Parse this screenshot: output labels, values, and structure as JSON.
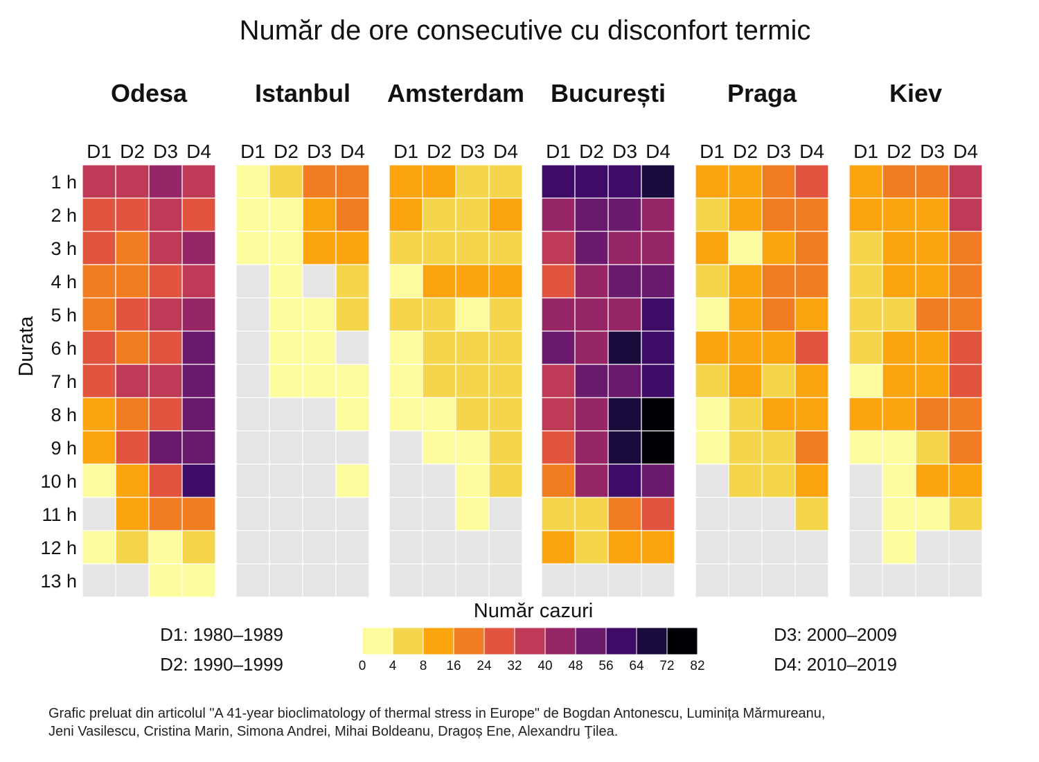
{
  "chart_data": {
    "type": "heatmap",
    "title": "Număr de ore consecutive cu disconfort termic",
    "ylabel": "Durata",
    "column_labels": [
      "D1",
      "D2",
      "D3",
      "D4"
    ],
    "row_labels": [
      "1 h",
      "2 h",
      "3 h",
      "4 h",
      "5 h",
      "6 h",
      "7 h",
      "8 h",
      "9 h",
      "10 h",
      "11 h",
      "12 h",
      "13 h"
    ],
    "legend": {
      "title": "Număr cazuri",
      "bins": [
        0,
        4,
        8,
        16,
        24,
        32,
        40,
        48,
        56,
        64,
        72,
        82
      ],
      "colors": [
        "#fcfc9f",
        "#f5d54b",
        "#fba40e",
        "#f27c22",
        "#e05440",
        "#bf3a56",
        "#962665",
        "#6a1a6d",
        "#3e0c66",
        "#190b3c",
        "#000004"
      ],
      "missing_color": "#e5e5e5"
    },
    "periods": [
      {
        "key": "D1",
        "label": "D1: 1980–1989"
      },
      {
        "key": "D2",
        "label": "D2: 1990–1999"
      },
      {
        "key": "D3",
        "label": "D3: 2000–2009"
      },
      {
        "key": "D4",
        "label": "D4: 2010–2019"
      }
    ],
    "panels": [
      {
        "city": "Odesa",
        "bins": [
          [
            5,
            5,
            6,
            5
          ],
          [
            4,
            4,
            5,
            4
          ],
          [
            4,
            3,
            5,
            6
          ],
          [
            3,
            3,
            4,
            5
          ],
          [
            3,
            4,
            5,
            6
          ],
          [
            4,
            3,
            4,
            7
          ],
          [
            4,
            5,
            5,
            7
          ],
          [
            2,
            3,
            4,
            7
          ],
          [
            2,
            4,
            7,
            7
          ],
          [
            0,
            2,
            4,
            8
          ],
          [
            null,
            2,
            3,
            3
          ],
          [
            0,
            1,
            0,
            1
          ],
          [
            null,
            null,
            0,
            0
          ]
        ]
      },
      {
        "city": "Istanbul",
        "bins": [
          [
            0,
            1,
            3,
            3
          ],
          [
            0,
            0,
            2,
            3
          ],
          [
            0,
            0,
            2,
            2
          ],
          [
            null,
            0,
            null,
            1
          ],
          [
            null,
            0,
            0,
            1
          ],
          [
            null,
            0,
            0,
            null
          ],
          [
            null,
            0,
            0,
            0
          ],
          [
            null,
            null,
            null,
            0
          ],
          [
            null,
            null,
            null,
            null
          ],
          [
            null,
            null,
            null,
            0
          ],
          [
            null,
            null,
            null,
            null
          ],
          [
            null,
            null,
            null,
            null
          ],
          [
            null,
            null,
            null,
            null
          ]
        ]
      },
      {
        "city": "Amsterdam",
        "bins": [
          [
            2,
            2,
            1,
            1
          ],
          [
            2,
            1,
            1,
            2
          ],
          [
            1,
            1,
            1,
            1
          ],
          [
            0,
            2,
            2,
            2
          ],
          [
            1,
            1,
            0,
            1
          ],
          [
            0,
            1,
            1,
            1
          ],
          [
            0,
            1,
            1,
            1
          ],
          [
            0,
            0,
            1,
            1
          ],
          [
            null,
            0,
            0,
            1
          ],
          [
            null,
            null,
            0,
            1
          ],
          [
            null,
            null,
            0,
            null
          ],
          [
            null,
            null,
            null,
            null
          ],
          [
            null,
            null,
            null,
            null
          ]
        ]
      },
      {
        "city": "București",
        "bins": [
          [
            8,
            8,
            8,
            9
          ],
          [
            6,
            7,
            7,
            6
          ],
          [
            5,
            7,
            6,
            6
          ],
          [
            4,
            6,
            7,
            7
          ],
          [
            6,
            6,
            6,
            8
          ],
          [
            7,
            6,
            9,
            8
          ],
          [
            5,
            7,
            7,
            8
          ],
          [
            5,
            6,
            9,
            10
          ],
          [
            4,
            6,
            9,
            10
          ],
          [
            3,
            6,
            8,
            7
          ],
          [
            1,
            1,
            3,
            4
          ],
          [
            2,
            1,
            2,
            2
          ],
          [
            null,
            null,
            null,
            null
          ]
        ]
      },
      {
        "city": "Praga",
        "bins": [
          [
            2,
            2,
            3,
            4
          ],
          [
            1,
            2,
            3,
            3
          ],
          [
            2,
            0,
            2,
            3
          ],
          [
            1,
            2,
            3,
            3
          ],
          [
            0,
            2,
            3,
            2
          ],
          [
            2,
            2,
            2,
            4
          ],
          [
            1,
            2,
            1,
            2
          ],
          [
            0,
            1,
            2,
            2
          ],
          [
            0,
            1,
            1,
            3
          ],
          [
            null,
            1,
            1,
            2
          ],
          [
            null,
            null,
            null,
            1
          ],
          [
            null,
            null,
            null,
            null
          ],
          [
            null,
            null,
            null,
            null
          ]
        ]
      },
      {
        "city": "Kiev",
        "bins": [
          [
            2,
            3,
            3,
            5
          ],
          [
            2,
            2,
            2,
            5
          ],
          [
            1,
            2,
            2,
            3
          ],
          [
            1,
            2,
            2,
            3
          ],
          [
            1,
            1,
            3,
            3
          ],
          [
            1,
            2,
            2,
            4
          ],
          [
            0,
            2,
            2,
            4
          ],
          [
            2,
            2,
            3,
            3
          ],
          [
            0,
            0,
            1,
            3
          ],
          [
            null,
            0,
            2,
            2
          ],
          [
            null,
            0,
            0,
            1
          ],
          [
            null,
            0,
            null,
            null
          ],
          [
            null,
            null,
            null,
            null
          ]
        ]
      }
    ]
  },
  "credit_lines": [
    "Grafic preluat din articolul \"A 41-year bioclimatology of thermal stress in Europe\" de Bogdan Antonescu, Luminița Mărmureanu,",
    "Jeni Vasilescu, Cristina Marin, Simona Andrei, Mihai Boldeanu, Dragoș Ene, Alexandru Ţilea."
  ]
}
